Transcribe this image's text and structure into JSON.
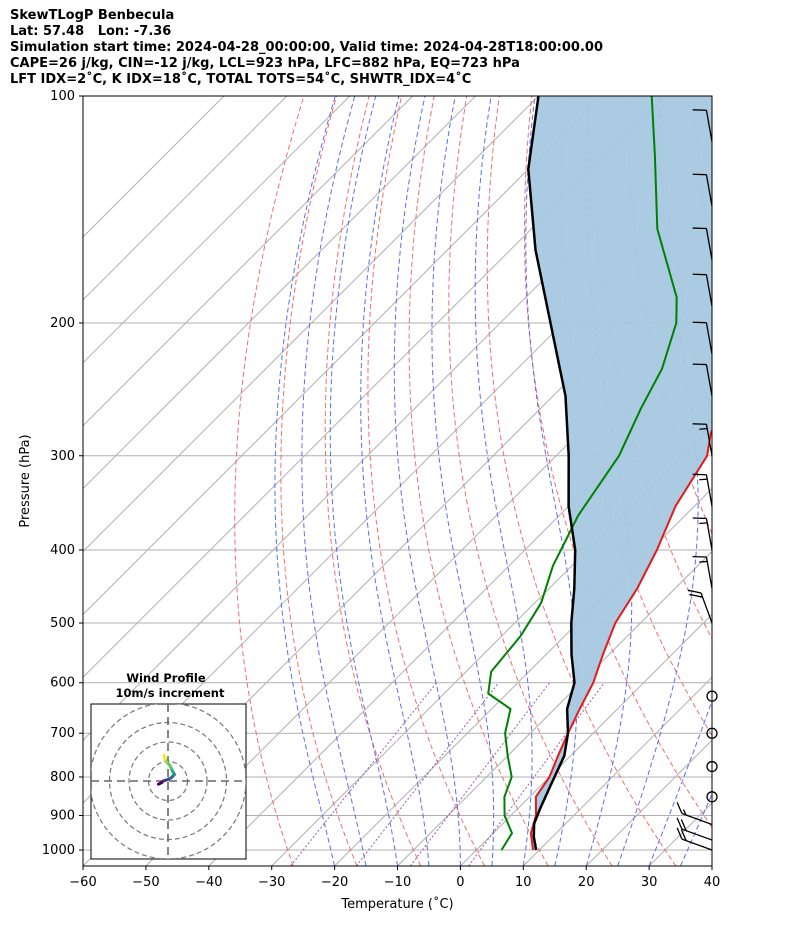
{
  "header": {
    "line1": "SkewTLogP Benbecula",
    "line2": "Lat: 57.48   Lon: -7.36",
    "line3": "Simulation start time: 2024-04-28_00:00:00, Valid time: 2024-04-28T18:00:00.00",
    "line4": "CAPE=26 j/kg, CIN=-12 j/kg, LCL=923 hPa, LFC=882 hPa, EQ=723 hPa",
    "line5": "LFT IDX=2˚C, K IDX=18˚C, TOTAL TOTS=54˚C, SHWTR_IDX=4˚C"
  },
  "chart_data": {
    "type": "skew-t log-p",
    "xlabel": "Temperature (˚C)",
    "ylabel": "Pressure (hPa)",
    "xlim": [
      -60,
      40
    ],
    "ylim": [
      1050,
      100
    ],
    "x_ticks": [
      -60,
      -50,
      -40,
      -30,
      -20,
      -10,
      0,
      10,
      20,
      30,
      40
    ],
    "y_ticks": [
      100,
      200,
      300,
      400,
      500,
      600,
      700,
      800,
      900,
      1000
    ],
    "grid": true,
    "y_scale": "log",
    "skewed_isotherms": true,
    "series": [
      {
        "kind": "temperature",
        "color": "#e31a1c",
        "points": [
          [
            9,
            1000
          ],
          [
            6,
            950
          ],
          [
            4,
            900
          ],
          [
            1,
            850
          ],
          [
            0,
            800
          ],
          [
            -2,
            750
          ],
          [
            -4,
            700
          ],
          [
            -6,
            650
          ],
          [
            -8,
            600
          ],
          [
            -11,
            550
          ],
          [
            -14,
            500
          ],
          [
            -16,
            450
          ],
          [
            -19,
            400
          ],
          [
            -23,
            350
          ],
          [
            -26,
            300
          ],
          [
            -29,
            280
          ],
          [
            -32,
            250
          ],
          [
            -38,
            200
          ],
          [
            -43,
            170
          ],
          [
            -48,
            150
          ],
          [
            -55,
            120
          ],
          [
            -58,
            100
          ]
        ]
      },
      {
        "kind": "dewpoint",
        "color": "#008000",
        "points": [
          [
            4,
            1000
          ],
          [
            3,
            950
          ],
          [
            -1,
            900
          ],
          [
            -4,
            850
          ],
          [
            -6,
            800
          ],
          [
            -10,
            750
          ],
          [
            -14,
            700
          ],
          [
            -17,
            650
          ],
          [
            -23,
            620
          ],
          [
            -26,
            580
          ],
          [
            -27,
            520
          ],
          [
            -29,
            470
          ],
          [
            -33,
            420
          ],
          [
            -37,
            360
          ],
          [
            -40,
            300
          ],
          [
            -44,
            260
          ],
          [
            -47,
            230
          ],
          [
            -52,
            200
          ],
          [
            -56,
            185
          ],
          [
            -70,
            150
          ],
          [
            -82,
            120
          ],
          [
            -92,
            100
          ]
        ]
      },
      {
        "kind": "parcel",
        "color": "#000000",
        "points": [
          [
            9.5,
            1000
          ],
          [
            7,
            960
          ],
          [
            5,
            923
          ],
          [
            3.5,
            880
          ],
          [
            1.5,
            820
          ],
          [
            -1,
            750
          ],
          [
            -4,
            700
          ],
          [
            -8,
            650
          ],
          [
            -11,
            600
          ],
          [
            -16,
            550
          ],
          [
            -21,
            500
          ],
          [
            -26,
            450
          ],
          [
            -32,
            400
          ],
          [
            -40,
            350
          ],
          [
            -48,
            300
          ],
          [
            -58,
            250
          ],
          [
            -72,
            200
          ],
          [
            -86,
            160
          ],
          [
            -100,
            125
          ],
          [
            -110,
            100
          ]
        ]
      }
    ],
    "shaded_area": {
      "between": [
        "parcel",
        "temperature"
      ],
      "color": "#a6c8e0"
    },
    "wind_barbs": [
      {
        "pressure": 1000,
        "speed_kt": 20
      },
      {
        "pressure": 970,
        "speed_kt": 20
      },
      {
        "pressure": 925,
        "speed_kt": 15
      },
      {
        "pressure": 850,
        "speed_kt": 0
      },
      {
        "pressure": 775,
        "speed_kt": 0
      },
      {
        "pressure": 700,
        "speed_kt": 0
      },
      {
        "pressure": 625,
        "speed_kt": 0
      },
      {
        "pressure": 500,
        "speed_kt": 20
      },
      {
        "pressure": 450,
        "speed_kt": 15
      },
      {
        "pressure": 400,
        "speed_kt": 15
      },
      {
        "pressure": 350,
        "speed_kt": 15
      },
      {
        "pressure": 300,
        "speed_kt": 15
      },
      {
        "pressure": 250,
        "speed_kt": 10
      },
      {
        "pressure": 220,
        "speed_kt": 10
      },
      {
        "pressure": 190,
        "speed_kt": 10
      },
      {
        "pressure": 165,
        "speed_kt": 10
      },
      {
        "pressure": 140,
        "speed_kt": 10
      },
      {
        "pressure": 115,
        "speed_kt": 10
      }
    ],
    "hodograph": {
      "title_line1": "Wind Profile",
      "title_line2": "10m/s increment",
      "ring_step": 10,
      "points": [
        [
          -3,
          -1
        ],
        [
          -2,
          -0.5
        ],
        [
          -1.5,
          0
        ],
        [
          0,
          0.5
        ],
        [
          1,
          1
        ],
        [
          1.5,
          1.5
        ],
        [
          2,
          2
        ],
        [
          1.5,
          3
        ],
        [
          1,
          4
        ],
        [
          0.5,
          5
        ],
        [
          -0.5,
          6
        ],
        [
          -1,
          7
        ],
        [
          -1.2,
          8
        ]
      ],
      "colors": [
        "#440154",
        "#472c7a",
        "#3b518b",
        "#2c718e",
        "#21908d",
        "#27ad81",
        "#5cc863",
        "#aadc32",
        "#fde725"
      ]
    }
  }
}
